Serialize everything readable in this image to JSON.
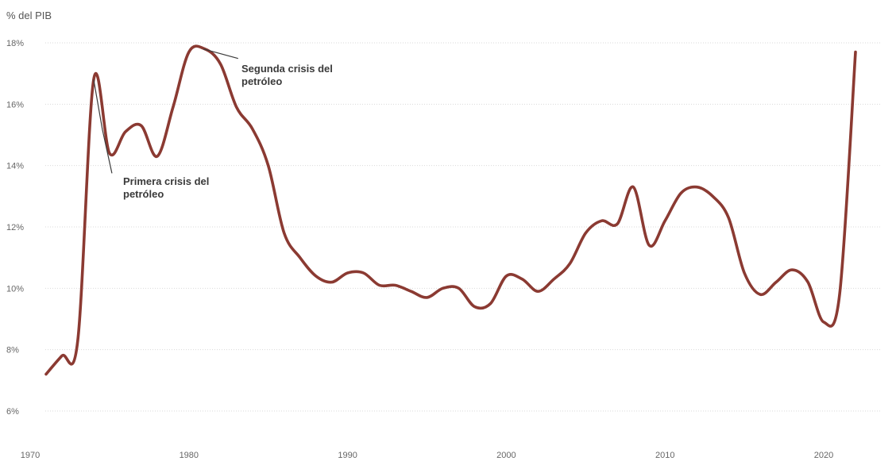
{
  "chart_data": {
    "type": "line",
    "ylabel": "% del PIB",
    "xlim": [
      1970,
      2022
    ],
    "ylim": [
      6,
      18
    ],
    "x_ticks": [
      "1970",
      "1980",
      "1990",
      "2000",
      "2010",
      "2020"
    ],
    "y_ticks": [
      "6%",
      "8%",
      "10%",
      "12%",
      "14%",
      "16%",
      "18%"
    ],
    "grid": true,
    "series": [
      {
        "color": "#8b3a32",
        "x": [
          1971,
          1972,
          1973,
          1974,
          1975,
          1976,
          1977,
          1978,
          1979,
          1980,
          1981,
          1982,
          1983,
          1984,
          1985,
          1986,
          1987,
          1988,
          1989,
          1990,
          1991,
          1992,
          1993,
          1994,
          1995,
          1996,
          1997,
          1998,
          1999,
          2000,
          2001,
          2002,
          2003,
          2004,
          2005,
          2006,
          2007,
          2008,
          2009,
          2010,
          2011,
          2012,
          2013,
          2014,
          2015,
          2016,
          2017,
          2018,
          2019,
          2020,
          2021,
          2022
        ],
        "y": [
          7.2,
          7.8,
          8.3,
          16.8,
          14.4,
          15.1,
          15.3,
          14.3,
          15.9,
          17.7,
          17.8,
          17.3,
          15.9,
          15.2,
          14.0,
          11.8,
          11.0,
          10.4,
          10.2,
          10.5,
          10.5,
          10.1,
          10.1,
          9.9,
          9.7,
          10.0,
          10.0,
          9.4,
          9.5,
          10.4,
          10.3,
          9.9,
          10.3,
          10.8,
          11.8,
          12.2,
          12.1,
          13.3,
          11.4,
          12.2,
          13.1,
          13.3,
          13.0,
          12.3,
          10.5,
          9.8,
          10.2,
          10.6,
          10.2,
          8.9,
          9.8,
          17.7
        ]
      }
    ],
    "annotations": [
      {
        "text": [
          "Primera crisis del",
          "petróleo"
        ],
        "x": 1974,
        "y": 16.8
      },
      {
        "text": [
          "Segunda crisis del",
          "petróleo"
        ],
        "x": 1981,
        "y": 17.8
      }
    ]
  }
}
